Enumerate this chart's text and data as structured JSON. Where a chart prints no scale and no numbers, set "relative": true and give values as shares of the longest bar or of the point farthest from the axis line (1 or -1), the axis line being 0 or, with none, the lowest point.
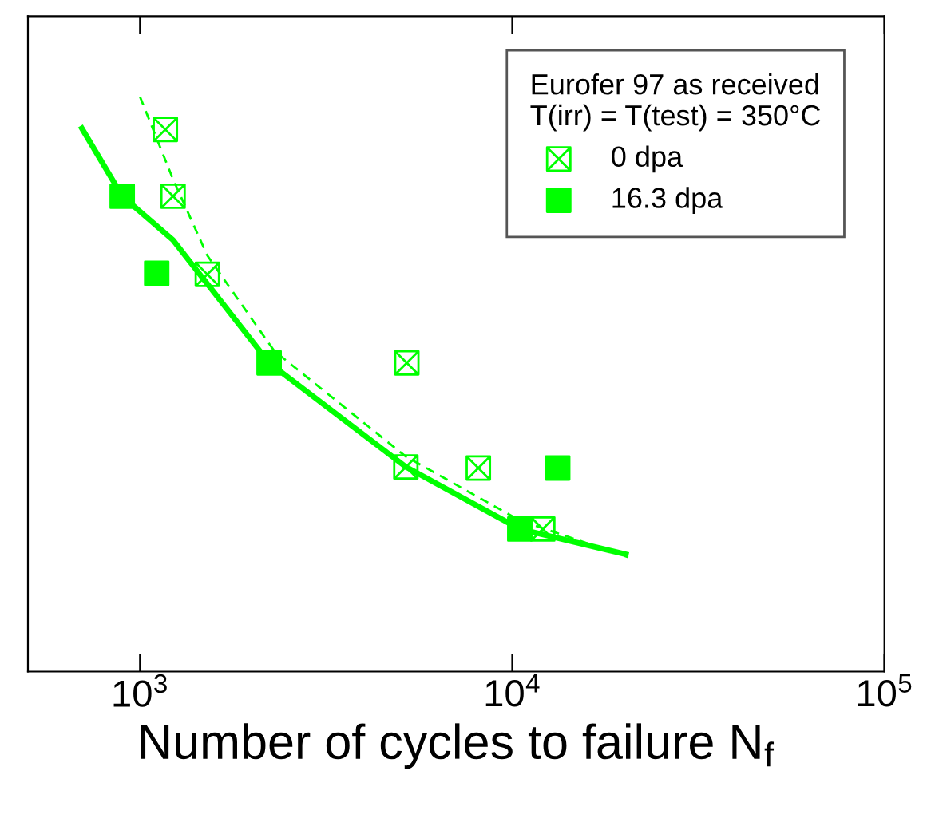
{
  "chart_data": {
    "type": "scatter",
    "relative": true,
    "log": "x",
    "xlabel": "Number of cycles to failure N$_{f}$",
    "xlim": [
      500,
      100000
    ],
    "xticks": [
      {
        "value": 1000,
        "label": "10$^{3}$"
      },
      {
        "value": 10000,
        "label": "10$^{4}$"
      },
      {
        "value": 100000,
        "label": "10$^{5}$"
      }
    ],
    "legend_title": "Eurofer 97 as received\nT(irr) = T(test) = 350°C",
    "legend": "top right",
    "grid": false,
    "series": [
      {
        "name": "0 dpa",
        "marker": "cross",
        "color": "#00ff00",
        "x": [
          1170,
          1227,
          1517,
          5210,
          5180,
          8110,
          12080
        ],
        "values": [
          0.943,
          0.827,
          0.691,
          0.537,
          0.356,
          0.354,
          0.248
        ]
      },
      {
        "name": "16.3 dpa",
        "marker": "square",
        "color": "#00ff00",
        "x": [
          896,
          1109,
          2223,
          13250,
          10480
        ],
        "values": [
          0.827,
          0.693,
          0.537,
          0.354,
          0.248
        ]
      },
      {
        "type": "line",
        "marker": "none",
        "line_style": "solid",
        "color": "#00ff00",
        "x": [
          698,
          896,
          1226,
          2223,
          5180,
          10480,
          20200
        ],
        "values": [
          0.945,
          0.827,
          0.751,
          0.537,
          0.356,
          0.248,
          0.204
        ]
      },
      {
        "type": "line",
        "marker": "none",
        "line_style": "dashed",
        "color": "#00ff00",
        "x": [
          1000,
          1226,
          1516,
          2293,
          5180,
          10480,
          20500
        ],
        "values": [
          1,
          0.857,
          0.724,
          0.558,
          0.374,
          0.263,
          0.199
        ]
      }
    ]
  }
}
